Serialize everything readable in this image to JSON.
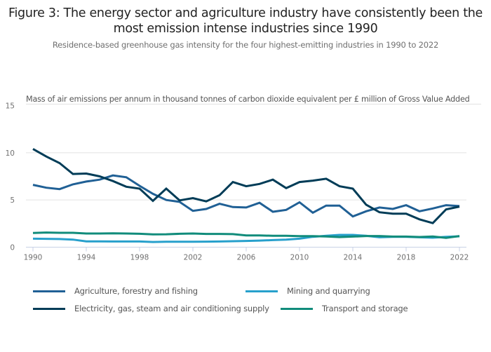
{
  "chart_data": {
    "type": "line",
    "title": "Figure 3: The energy sector and agriculture industry have consistently been the most emission intense industries since 1990",
    "subtitle": "Residence-based greenhouse gas intensity for the four highest-emitting industries in 1990 to 2022",
    "xlabel": "",
    "ylabel": "Mass of air emissions per annum in thousand tonnes of carbon dioxide equivalent per £ million of Gross Value Added",
    "ylim": [
      0,
      15
    ],
    "xlim": [
      1990,
      2022
    ],
    "yticks": [
      "0",
      "5",
      "10",
      "15"
    ],
    "xticks": [
      "1990",
      "1994",
      "1998",
      "2002",
      "2006",
      "2010",
      "2014",
      "2018",
      "2022"
    ],
    "grid": true,
    "legend_position": "bottom",
    "x": [
      1990,
      1991,
      1992,
      1993,
      1994,
      1995,
      1996,
      1997,
      1998,
      1999,
      2000,
      2001,
      2002,
      2003,
      2004,
      2005,
      2006,
      2007,
      2008,
      2009,
      2010,
      2011,
      2012,
      2013,
      2014,
      2015,
      2016,
      2017,
      2018,
      2019,
      2020,
      2021,
      2022
    ],
    "series": [
      {
        "name": "Agriculture, forestry and fishing",
        "color": "#206095",
        "values": [
          6.6,
          6.3,
          6.15,
          6.65,
          6.95,
          7.15,
          7.6,
          7.4,
          6.5,
          5.65,
          5.0,
          4.8,
          3.85,
          4.05,
          4.6,
          4.25,
          4.2,
          4.7,
          3.75,
          3.95,
          4.75,
          3.65,
          4.4,
          4.4,
          3.25,
          3.8,
          4.2,
          4.05,
          4.45,
          3.8,
          4.1,
          4.45,
          4.35
        ]
      },
      {
        "name": "Mining and quarrying",
        "color": "#27a0cc",
        "values": [
          0.9,
          0.88,
          0.86,
          0.8,
          0.62,
          0.62,
          0.6,
          0.6,
          0.6,
          0.55,
          0.57,
          0.58,
          0.58,
          0.59,
          0.6,
          0.63,
          0.66,
          0.7,
          0.75,
          0.8,
          0.9,
          1.1,
          1.2,
          1.3,
          1.3,
          1.2,
          1.05,
          1.1,
          1.1,
          1.05,
          1.0,
          1.1,
          1.15
        ]
      },
      {
        "name": "Electricity, gas, steam and air conditioning supply",
        "color": "#003c57",
        "values": [
          10.4,
          9.6,
          8.9,
          7.75,
          7.8,
          7.5,
          7.0,
          6.4,
          6.2,
          4.9,
          6.2,
          4.95,
          5.2,
          4.85,
          5.5,
          6.9,
          6.45,
          6.7,
          7.15,
          6.25,
          6.9,
          7.05,
          7.25,
          6.45,
          6.2,
          4.5,
          3.7,
          3.55,
          3.55,
          2.95,
          2.55,
          4.0,
          4.3
        ]
      },
      {
        "name": "Transport and storage",
        "color": "#118c7b",
        "values": [
          1.5,
          1.55,
          1.52,
          1.52,
          1.45,
          1.45,
          1.47,
          1.45,
          1.42,
          1.35,
          1.37,
          1.42,
          1.45,
          1.4,
          1.4,
          1.38,
          1.25,
          1.25,
          1.2,
          1.2,
          1.17,
          1.17,
          1.13,
          1.07,
          1.12,
          1.18,
          1.18,
          1.12,
          1.12,
          1.08,
          1.13,
          0.98,
          1.18
        ]
      }
    ]
  },
  "legend": {
    "items": [
      {
        "label": "Agriculture, forestry and fishing",
        "color": "#206095"
      },
      {
        "label": "Mining and quarrying",
        "color": "#27a0cc"
      },
      {
        "label": "Electricity, gas, steam and air conditioning supply",
        "color": "#003c57"
      },
      {
        "label": "Transport and storage",
        "color": "#118c7b"
      }
    ]
  }
}
